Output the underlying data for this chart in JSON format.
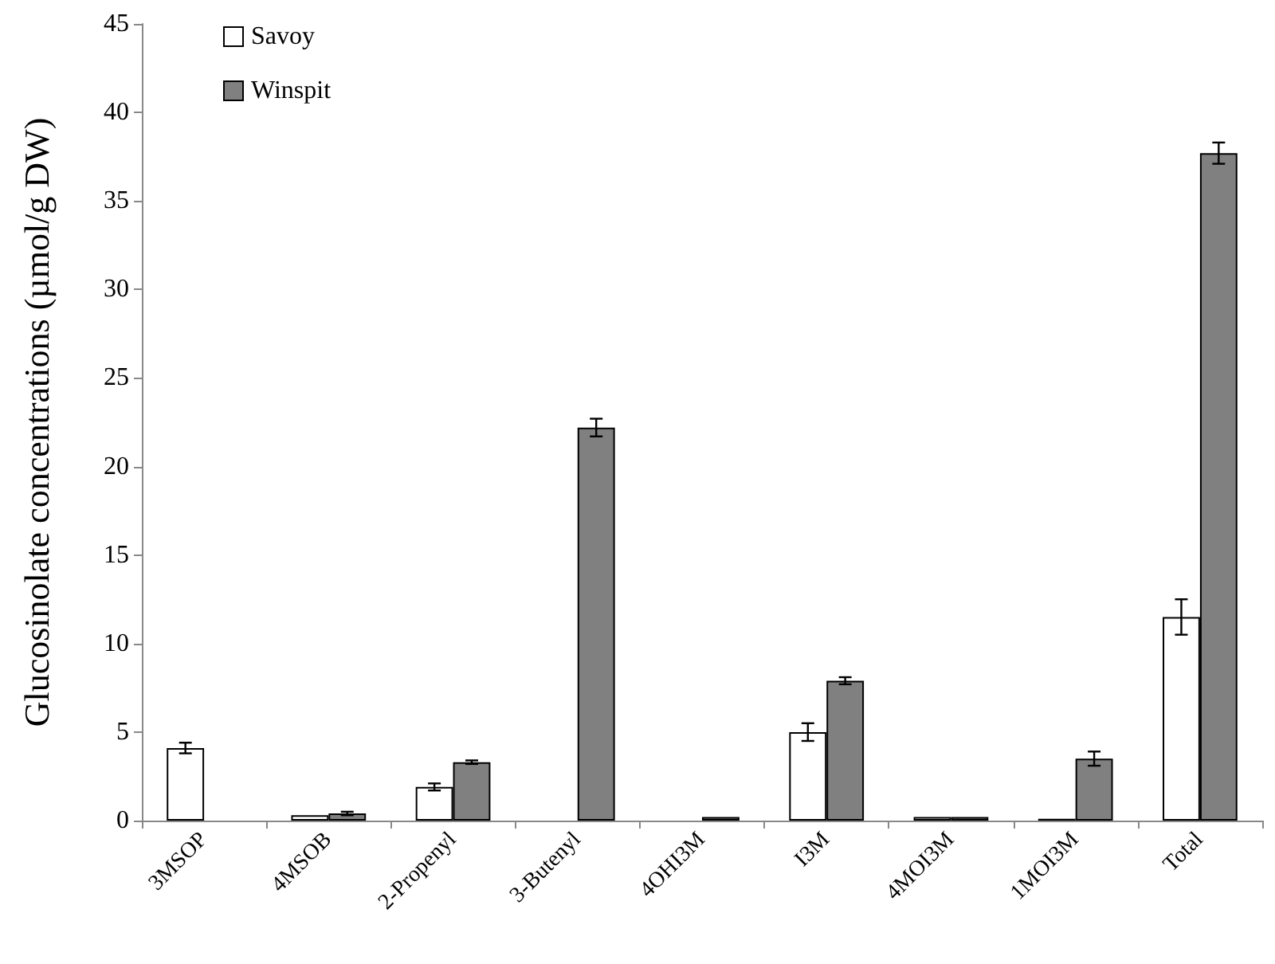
{
  "chart_data": {
    "type": "bar",
    "ylabel": "Glucosinolate concentrations (µmol/g DW)",
    "categories": [
      "3MSOP",
      "4MSOB",
      "2-Propenyl",
      "3-Butenyl",
      "4OHI3M",
      "I3M",
      "4MOI3M",
      "1MOI3M",
      "Total"
    ],
    "series": [
      {
        "name": "Savoy",
        "color": "#ffffff",
        "values": [
          4.1,
          0.3,
          1.9,
          0,
          0,
          5.0,
          0.2,
          0.1,
          11.5
        ],
        "errors": [
          0.3,
          null,
          0.2,
          null,
          null,
          0.5,
          null,
          null,
          1.0
        ]
      },
      {
        "name": "Winspit",
        "color": "#808080",
        "values": [
          0,
          0.4,
          3.3,
          22.2,
          0.2,
          7.9,
          0.2,
          3.5,
          37.7
        ],
        "errors": [
          null,
          0.1,
          0.1,
          0.5,
          null,
          0.2,
          null,
          0.4,
          0.6
        ]
      }
    ],
    "ylim": [
      0,
      45
    ],
    "yticks": [
      0,
      5,
      10,
      15,
      20,
      25,
      30,
      35,
      40,
      45
    ],
    "grid": false,
    "legend": "top left"
  }
}
